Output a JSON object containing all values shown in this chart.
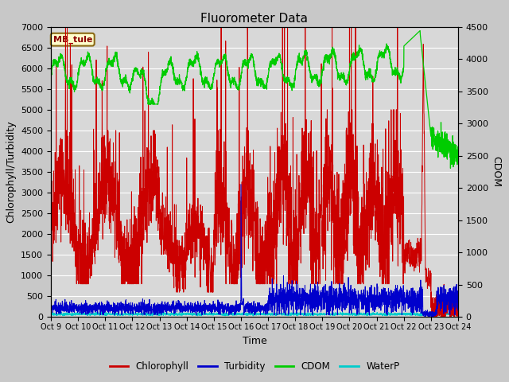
{
  "title": "Fluorometer Data",
  "xlabel": "Time",
  "ylabel_left": "Chlorophyll/Turbidity",
  "ylabel_right": "CDOM",
  "ylim_left": [
    0,
    7000
  ],
  "ylim_right": [
    0,
    4500
  ],
  "yticks_left": [
    0,
    500,
    1000,
    1500,
    2000,
    2500,
    3000,
    3500,
    4000,
    4500,
    5000,
    5500,
    6000,
    6500,
    7000
  ],
  "yticks_right": [
    0,
    500,
    1000,
    1500,
    2000,
    2500,
    3000,
    3500,
    4000,
    4500
  ],
  "xtick_labels": [
    "Oct 9",
    "Oct 10",
    "Oct 11",
    "Oct 12",
    "Oct 13",
    "Oct 14",
    "Oct 15",
    "Oct 16",
    "Oct 17",
    "Oct 18",
    "Oct 19",
    "Oct 20",
    "Oct 21",
    "Oct 22",
    "Oct 23",
    "Oct 24"
  ],
  "station_label": "MB_tule",
  "fig_bg_color": "#c8c8c8",
  "plot_bg_color": "#d8d8d8",
  "colors": {
    "Chlorophyll": "#cc0000",
    "Turbidity": "#0000cc",
    "CDOM": "#00cc00",
    "WaterP": "#00cccc"
  },
  "legend_entries": [
    "Chlorophyll",
    "Turbidity",
    "CDOM",
    "WaterP"
  ]
}
